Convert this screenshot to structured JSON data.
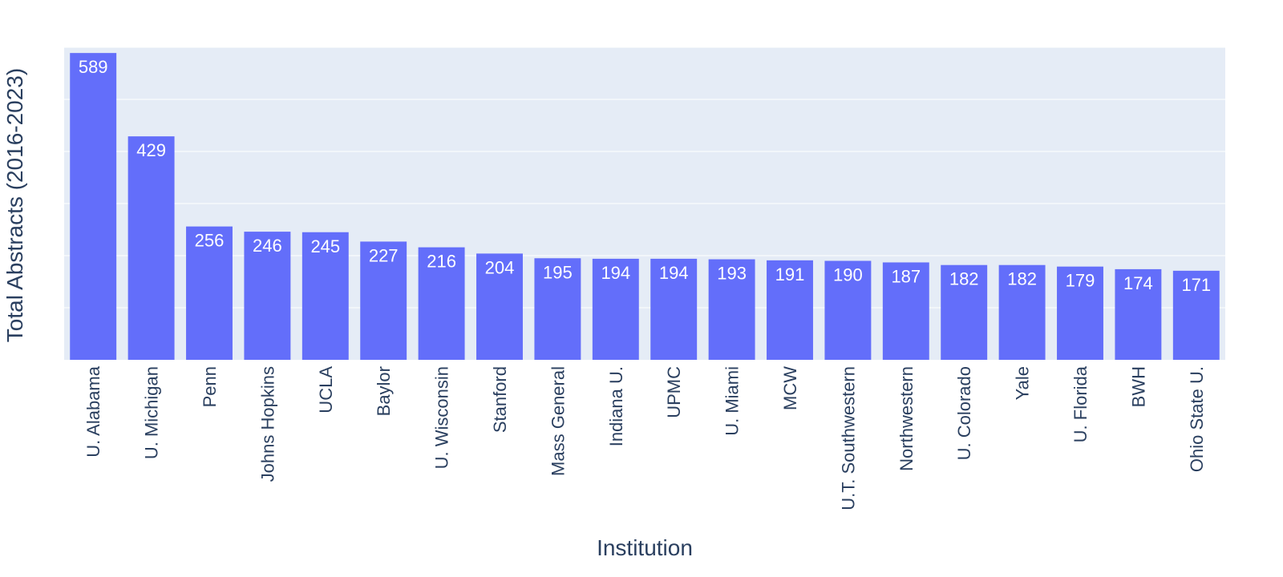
{
  "chart_data": {
    "type": "bar",
    "xlabel": "Institution",
    "ylabel": "Total Abstracts (2016-2023)",
    "categories": [
      "U. Alabama",
      "U. Michigan",
      "Penn",
      "Johns Hopkins",
      "UCLA",
      "Baylor",
      "U. Wisconsin",
      "Stanford",
      "Mass General",
      "Indiana U.",
      "UPMC",
      "U. Miami",
      "MCW",
      "U.T. Southwestern",
      "Northwestern",
      "U. Colorado",
      "Yale",
      "U. Florida",
      "BWH",
      "Ohio State U."
    ],
    "values": [
      589,
      429,
      256,
      246,
      245,
      227,
      216,
      204,
      195,
      194,
      194,
      193,
      191,
      190,
      187,
      182,
      182,
      179,
      174,
      171
    ],
    "ylim": [
      0,
      600
    ],
    "grid": true,
    "y_tick_labels_shown": false,
    "colors": {
      "bar": "#636efa",
      "plot_background": "#e5ecf6",
      "grid": "#ffffff",
      "text": "#2a3f5f",
      "bar_label": "#ffffff"
    }
  }
}
